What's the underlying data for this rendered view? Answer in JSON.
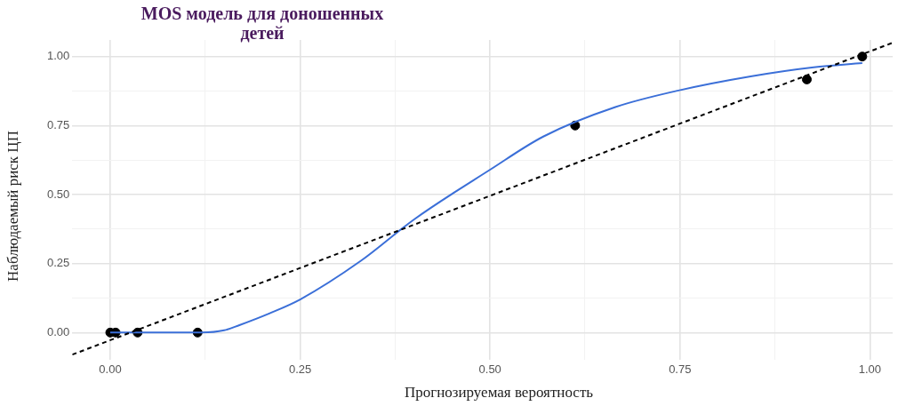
{
  "chart_data": {
    "type": "scatter",
    "title": "MOS модель для доношенных детей",
    "xlabel": "Прогнозируемая вероятность",
    "ylabel": "Наблюдаемый риск ЦП",
    "xlim": [
      -0.05,
      1.03
    ],
    "ylim": [
      -0.1,
      1.06
    ],
    "xticks": [
      {
        "value": 0,
        "label": "0.00"
      },
      {
        "value": 0.125,
        "label": null
      },
      {
        "value": 0.25,
        "label": "0.25"
      },
      {
        "value": 0.375,
        "label": null
      },
      {
        "value": 0.5,
        "label": "0.50"
      },
      {
        "value": 0.625,
        "label": null
      },
      {
        "value": 0.75,
        "label": "0.75"
      },
      {
        "value": 0.875,
        "label": null
      },
      {
        "value": 1,
        "label": "1.00"
      }
    ],
    "yticks": [
      {
        "value": 0,
        "label": "0.00"
      },
      {
        "value": 0.125,
        "label": null
      },
      {
        "value": 0.25,
        "label": "0.25"
      },
      {
        "value": 0.375,
        "label": null
      },
      {
        "value": 0.5,
        "label": "0.50"
      },
      {
        "value": 0.625,
        "label": null
      },
      {
        "value": 0.75,
        "label": "0.75"
      },
      {
        "value": 0.875,
        "label": null
      },
      {
        "value": 1,
        "label": "1.00"
      }
    ],
    "grid": true,
    "series": [
      {
        "type": "line",
        "color": "#000000",
        "line_style": "dashed",
        "marker": "none",
        "x": [
          -0.05,
          1.03
        ],
        "values": [
          -0.08,
          1.05
        ]
      },
      {
        "type": "line",
        "color": "#3b6fd8",
        "line_style": "solid",
        "marker": "none",
        "x": [
          0,
          0.06,
          0.12,
          0.15,
          0.17,
          0.21,
          0.25,
          0.33,
          0.4,
          0.5,
          0.57,
          0.665,
          0.748,
          0.843,
          0.926,
          0.99
        ],
        "values": [
          0,
          0,
          0,
          0.008,
          0.027,
          0.07,
          0.12,
          0.26,
          0.41,
          0.59,
          0.71,
          0.817,
          0.877,
          0.928,
          0.961,
          0.976
        ]
      },
      {
        "type": "scatter",
        "color": "#000000",
        "marker": "circle",
        "x": [
          0,
          0.007,
          0.036,
          0.115,
          0.612,
          0.917,
          0.99
        ],
        "values": [
          0,
          0,
          0,
          0,
          0.75,
          0.917,
          1
        ]
      }
    ]
  }
}
